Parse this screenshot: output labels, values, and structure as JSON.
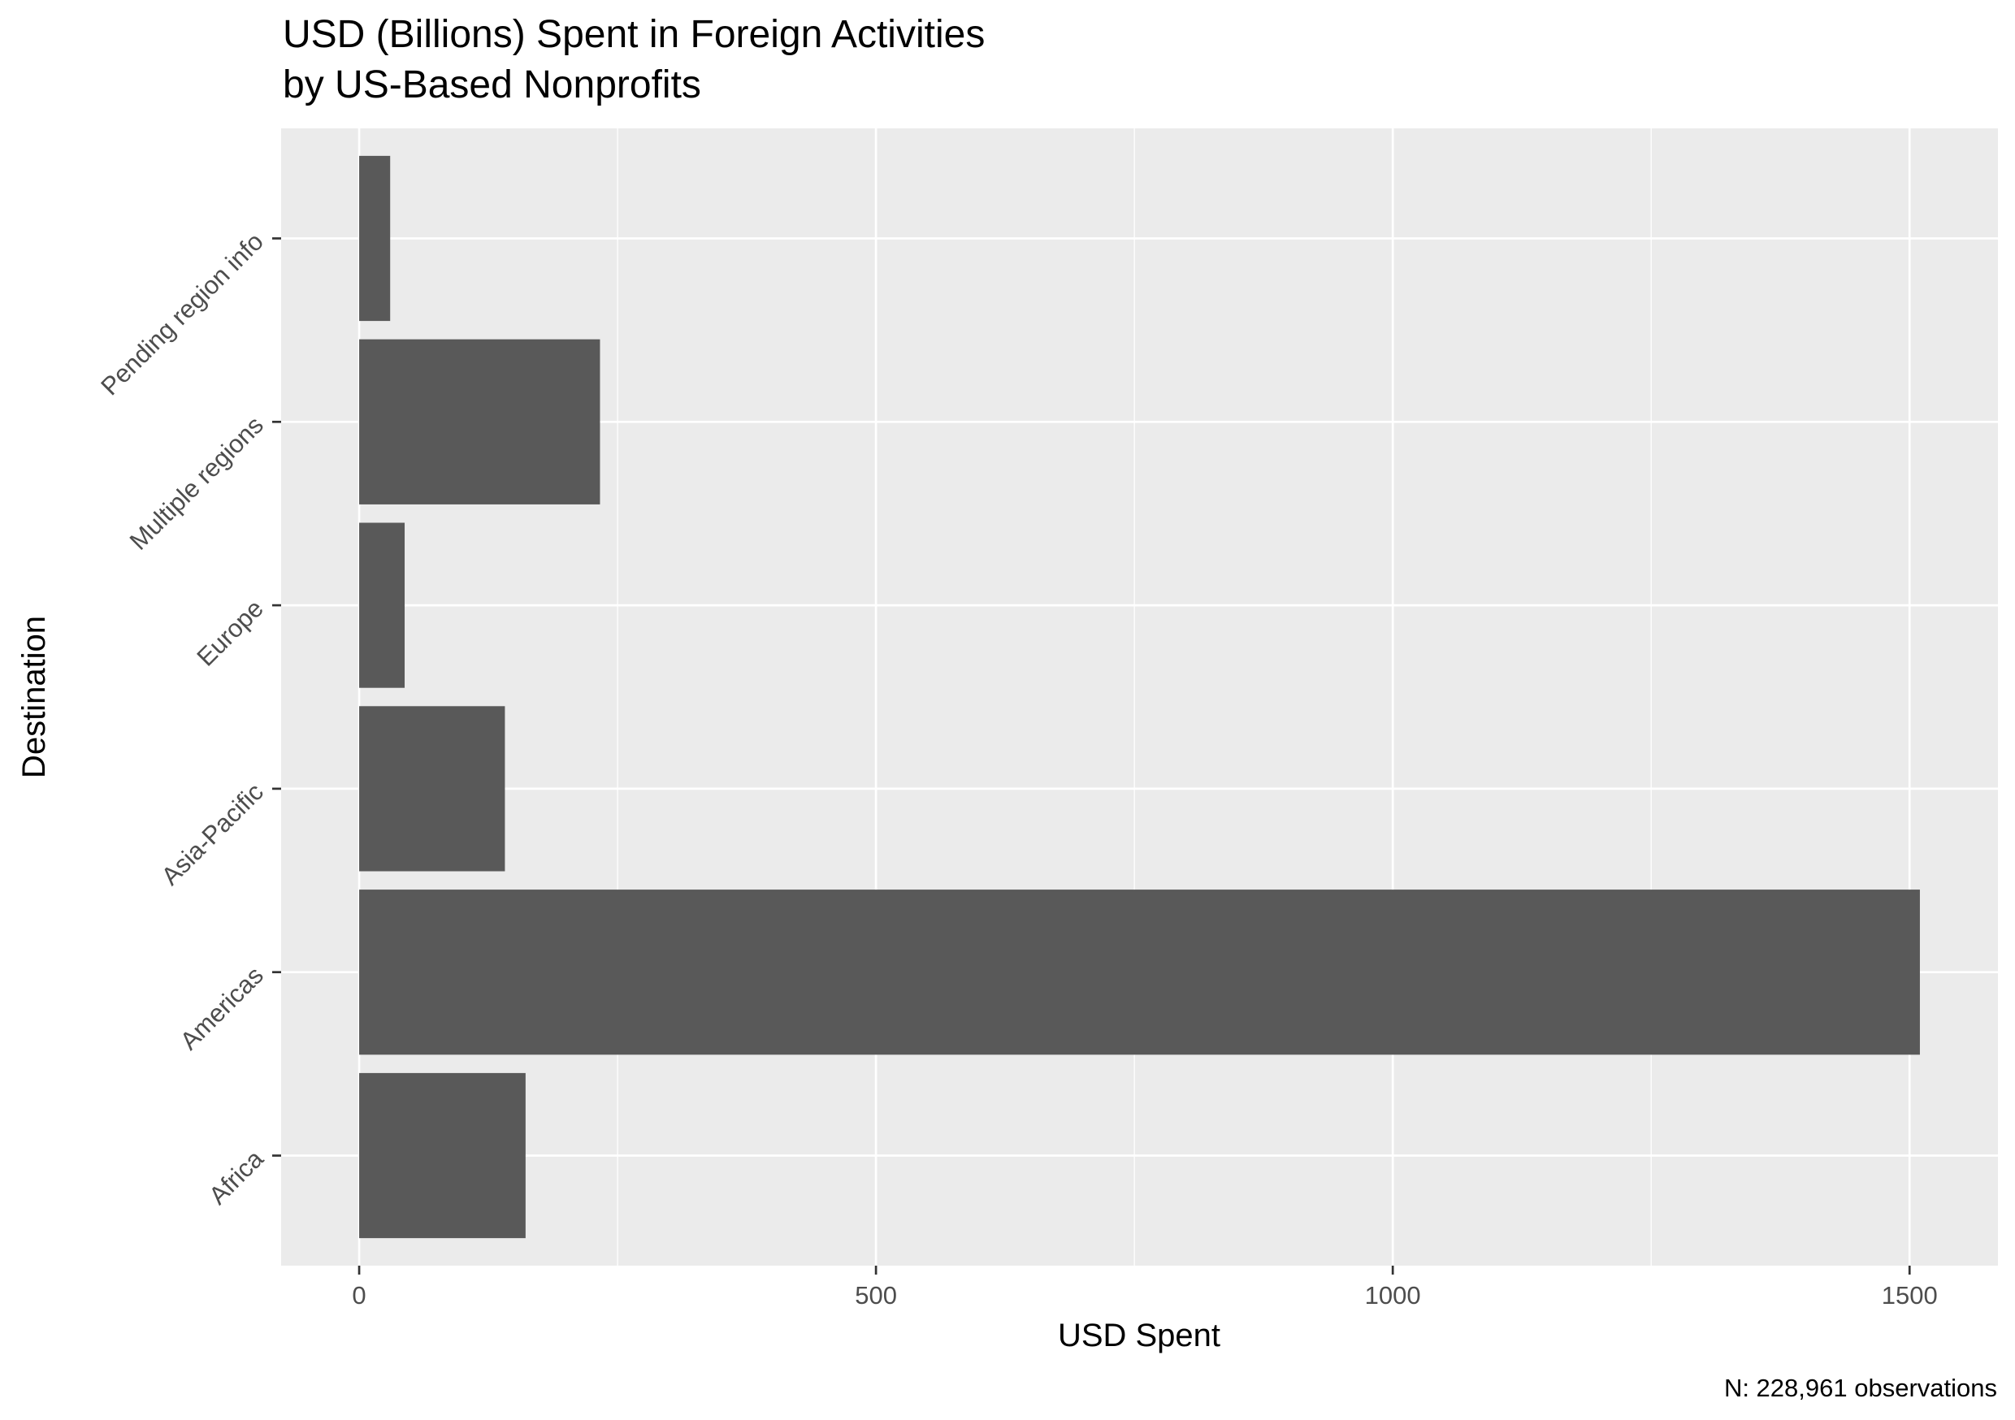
{
  "chart_data": {
    "type": "bar",
    "orientation": "horizontal",
    "title": "USD (Billions) Spent in Foreign Activities",
    "subtitle": "by US-Based Nonprofits",
    "xlabel": "USD Spent",
    "ylabel": "Destination",
    "caption": "N: 228,961 observations",
    "categories": [
      "Africa",
      "Americas",
      "Asia-Pacific",
      "Europe",
      "Multiple regions",
      "Pending region info"
    ],
    "values": [
      161,
      1510,
      141,
      44,
      233,
      30
    ],
    "x_ticks": [
      0,
      500,
      1000,
      1500
    ],
    "x_tick_labels": [
      "0",
      "500",
      "1000",
      "1500"
    ],
    "xlim": [
      -75.5,
      1585.5
    ],
    "grid": true,
    "legend": "none",
    "colors": {
      "bar": "#595959",
      "panel": "#ebebeb",
      "grid": "#ffffff",
      "text": "#000000",
      "tick_text": "#4d4d4d",
      "tick": "#333333"
    }
  }
}
